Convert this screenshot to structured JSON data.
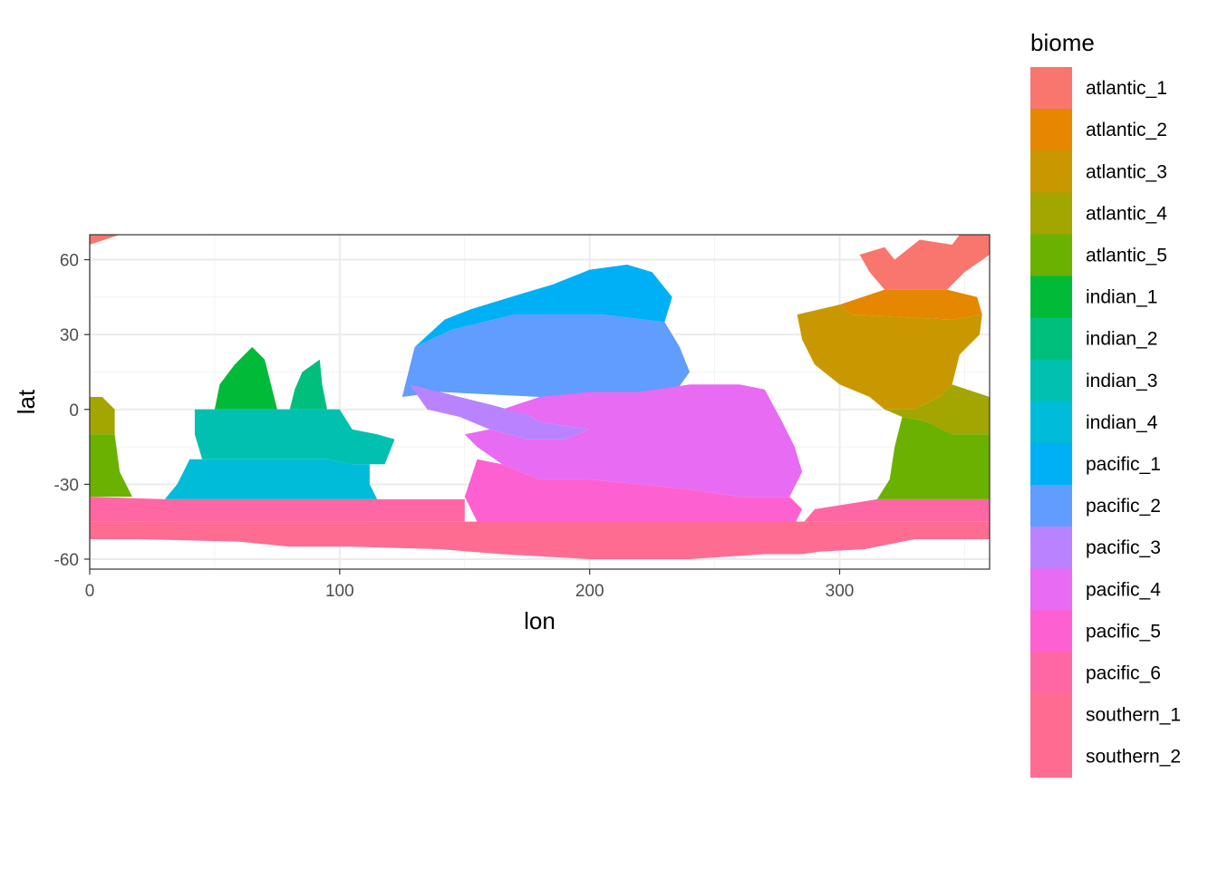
{
  "chart_data": {
    "type": "heatmap",
    "xlabel": "lon",
    "ylabel": "lat",
    "xlim": [
      0,
      360
    ],
    "ylim": [
      -64,
      70
    ],
    "x_ticks": [
      0,
      100,
      200,
      300
    ],
    "y_ticks": [
      -60,
      -30,
      0,
      30,
      60
    ],
    "grid": true,
    "theme": "bw",
    "legend": {
      "title": "biome",
      "position": "right",
      "entries": [
        {
          "name": "atlantic_1",
          "color": "#F8766D"
        },
        {
          "name": "atlantic_2",
          "color": "#E58700"
        },
        {
          "name": "atlantic_3",
          "color": "#C99800"
        },
        {
          "name": "atlantic_4",
          "color": "#A3A500"
        },
        {
          "name": "atlantic_5",
          "color": "#6BB100"
        },
        {
          "name": "indian_1",
          "color": "#00BA38"
        },
        {
          "name": "indian_2",
          "color": "#00BF7D"
        },
        {
          "name": "indian_3",
          "color": "#00C0AF"
        },
        {
          "name": "indian_4",
          "color": "#00BCD8"
        },
        {
          "name": "pacific_1",
          "color": "#00B0F6"
        },
        {
          "name": "pacific_2",
          "color": "#619CFF"
        },
        {
          "name": "pacific_3",
          "color": "#B983FF"
        },
        {
          "name": "pacific_4",
          "color": "#E76BF3"
        },
        {
          "name": "pacific_5",
          "color": "#FD61D1"
        },
        {
          "name": "pacific_6",
          "color": "#FF67A4"
        },
        {
          "name": "southern_1",
          "color": "#FF6C91"
        },
        {
          "name": "southern_2",
          "color": "#FF6C91"
        }
      ]
    },
    "regions": [
      {
        "biome": "atlantic_1",
        "points": [
          [
            0,
            66
          ],
          [
            12,
            70
          ],
          [
            0,
            70
          ]
        ]
      },
      {
        "biome": "atlantic_1",
        "points": [
          [
            308,
            62
          ],
          [
            318,
            65
          ],
          [
            322,
            60
          ],
          [
            332,
            68
          ],
          [
            345,
            66
          ],
          [
            348,
            70
          ],
          [
            360,
            70
          ],
          [
            360,
            62
          ],
          [
            350,
            55
          ],
          [
            343,
            48
          ],
          [
            332,
            48
          ],
          [
            318,
            48
          ],
          [
            312,
            55
          ]
        ]
      },
      {
        "biome": "atlantic_2",
        "points": [
          [
            300,
            42
          ],
          [
            318,
            48
          ],
          [
            332,
            48
          ],
          [
            343,
            48
          ],
          [
            355,
            45
          ],
          [
            357,
            38
          ],
          [
            345,
            36
          ],
          [
            325,
            37
          ],
          [
            305,
            38
          ]
        ]
      },
      {
        "biome": "atlantic_3",
        "points": [
          [
            283,
            38
          ],
          [
            300,
            42
          ],
          [
            305,
            38
          ],
          [
            325,
            37
          ],
          [
            345,
            36
          ],
          [
            357,
            38
          ],
          [
            356,
            30
          ],
          [
            348,
            22
          ],
          [
            345,
            10
          ],
          [
            340,
            5
          ],
          [
            330,
            0
          ],
          [
            318,
            0
          ],
          [
            312,
            5
          ],
          [
            300,
            10
          ],
          [
            290,
            18
          ],
          [
            285,
            28
          ]
        ]
      },
      {
        "biome": "atlantic_4",
        "points": [
          [
            0,
            5
          ],
          [
            5,
            5
          ],
          [
            10,
            0
          ],
          [
            10,
            -10
          ],
          [
            0,
            -10
          ]
        ]
      },
      {
        "biome": "atlantic_4",
        "points": [
          [
            318,
            0
          ],
          [
            330,
            0
          ],
          [
            340,
            5
          ],
          [
            345,
            10
          ],
          [
            360,
            5
          ],
          [
            360,
            -10
          ],
          [
            345,
            -10
          ],
          [
            335,
            -5
          ],
          [
            325,
            -3
          ]
        ]
      },
      {
        "biome": "atlantic_5",
        "points": [
          [
            0,
            -10
          ],
          [
            10,
            -10
          ],
          [
            12,
            -25
          ],
          [
            17,
            -35
          ],
          [
            0,
            -35
          ]
        ]
      },
      {
        "biome": "atlantic_5",
        "points": [
          [
            325,
            -3
          ],
          [
            335,
            -5
          ],
          [
            345,
            -10
          ],
          [
            360,
            -10
          ],
          [
            360,
            -36
          ],
          [
            315,
            -36
          ],
          [
            320,
            -28
          ],
          [
            322,
            -15
          ]
        ]
      },
      {
        "biome": "indian_1",
        "points": [
          [
            50,
            0
          ],
          [
            75,
            0
          ],
          [
            72,
            12
          ],
          [
            70,
            20
          ],
          [
            65,
            25
          ],
          [
            58,
            18
          ],
          [
            52,
            10
          ]
        ]
      },
      {
        "biome": "indian_2",
        "points": [
          [
            80,
            0
          ],
          [
            95,
            0
          ],
          [
            93,
            10
          ],
          [
            92,
            20
          ],
          [
            85,
            15
          ],
          [
            82,
            8
          ]
        ]
      },
      {
        "biome": "indian_3",
        "points": [
          [
            42,
            0
          ],
          [
            100,
            0
          ],
          [
            105,
            -8
          ],
          [
            115,
            -10
          ],
          [
            122,
            -12
          ],
          [
            118,
            -22
          ],
          [
            105,
            -22
          ],
          [
            95,
            -20
          ],
          [
            45,
            -20
          ],
          [
            42,
            -10
          ]
        ]
      },
      {
        "biome": "indian_4",
        "points": [
          [
            40,
            -20
          ],
          [
            45,
            -20
          ],
          [
            95,
            -20
          ],
          [
            105,
            -22
          ],
          [
            112,
            -22
          ],
          [
            112,
            -30
          ],
          [
            115,
            -36
          ],
          [
            30,
            -36
          ],
          [
            35,
            -30
          ]
        ]
      },
      {
        "biome": "pacific_1",
        "points": [
          [
            130,
            25
          ],
          [
            142,
            36
          ],
          [
            152,
            40
          ],
          [
            165,
            44
          ],
          [
            175,
            47
          ],
          [
            185,
            50
          ],
          [
            200,
            56
          ],
          [
            215,
            58
          ],
          [
            225,
            55
          ],
          [
            233,
            45
          ],
          [
            230,
            35
          ],
          [
            205,
            38
          ],
          [
            170,
            38
          ],
          [
            145,
            32
          ]
        ]
      },
      {
        "biome": "pacific_2",
        "points": [
          [
            125,
            5
          ],
          [
            130,
            25
          ],
          [
            145,
            32
          ],
          [
            170,
            38
          ],
          [
            205,
            38
          ],
          [
            230,
            35
          ],
          [
            236,
            25
          ],
          [
            240,
            15
          ],
          [
            235,
            8
          ],
          [
            220,
            7
          ],
          [
            180,
            5
          ],
          [
            140,
            7
          ]
        ]
      },
      {
        "biome": "pacific_3",
        "points": [
          [
            128,
            10
          ],
          [
            140,
            7
          ],
          [
            160,
            2
          ],
          [
            175,
            -2
          ],
          [
            180,
            -5
          ],
          [
            200,
            -8
          ],
          [
            190,
            -12
          ],
          [
            175,
            -12
          ],
          [
            160,
            -8
          ],
          [
            148,
            -3
          ],
          [
            135,
            0
          ]
        ]
      },
      {
        "biome": "pacific_4",
        "points": [
          [
            165,
            0
          ],
          [
            180,
            5
          ],
          [
            200,
            7
          ],
          [
            220,
            7
          ],
          [
            240,
            10
          ],
          [
            260,
            10
          ],
          [
            270,
            8
          ],
          [
            277,
            -5
          ],
          [
            282,
            -15
          ],
          [
            285,
            -25
          ],
          [
            280,
            -35
          ],
          [
            260,
            -35
          ],
          [
            240,
            -32
          ],
          [
            220,
            -30
          ],
          [
            200,
            -28
          ],
          [
            180,
            -28
          ],
          [
            165,
            -22
          ],
          [
            155,
            -15
          ],
          [
            150,
            -10
          ],
          [
            160,
            -8
          ],
          [
            175,
            -12
          ],
          [
            190,
            -12
          ],
          [
            200,
            -8
          ],
          [
            180,
            -5
          ],
          [
            175,
            -2
          ]
        ]
      },
      {
        "biome": "pacific_5",
        "points": [
          [
            150,
            -35
          ],
          [
            155,
            -45
          ],
          [
            180,
            -48
          ],
          [
            200,
            -48
          ],
          [
            240,
            -46
          ],
          [
            280,
            -50
          ],
          [
            285,
            -40
          ],
          [
            280,
            -35
          ],
          [
            260,
            -35
          ],
          [
            240,
            -32
          ],
          [
            220,
            -30
          ],
          [
            200,
            -28
          ],
          [
            180,
            -28
          ],
          [
            165,
            -22
          ],
          [
            155,
            -20
          ]
        ]
      },
      {
        "biome": "pacific_6",
        "points": [
          [
            0,
            -35
          ],
          [
            30,
            -36
          ],
          [
            115,
            -36
          ],
          [
            150,
            -36
          ],
          [
            150,
            -46
          ],
          [
            285,
            -46
          ],
          [
            290,
            -40
          ],
          [
            315,
            -36
          ],
          [
            360,
            -36
          ],
          [
            360,
            -45
          ],
          [
            0,
            -45
          ]
        ]
      },
      {
        "biome": "southern_2",
        "points": [
          [
            0,
            -45
          ],
          [
            360,
            -45
          ],
          [
            360,
            -52
          ],
          [
            330,
            -52
          ],
          [
            310,
            -56
          ],
          [
            292,
            -57
          ],
          [
            285,
            -58
          ],
          [
            270,
            -58
          ],
          [
            240,
            -60
          ],
          [
            200,
            -60
          ],
          [
            165,
            -58
          ],
          [
            140,
            -56
          ],
          [
            105,
            -55
          ],
          [
            80,
            -55
          ],
          [
            60,
            -53
          ],
          [
            20,
            -52
          ],
          [
            0,
            -52
          ]
        ]
      }
    ]
  }
}
